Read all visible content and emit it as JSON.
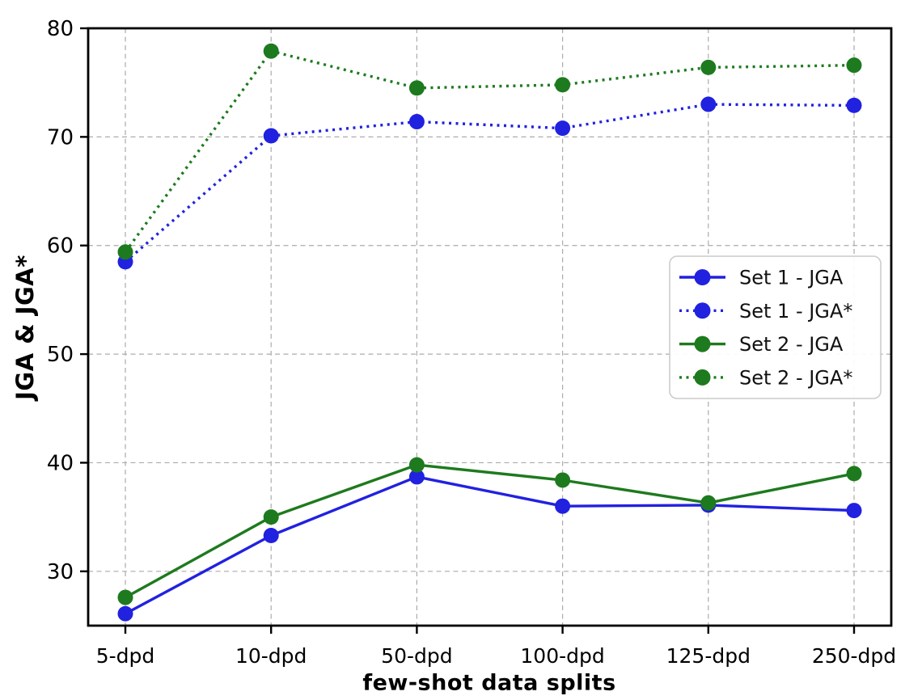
{
  "figure": {
    "background": "#ffffff",
    "text_color": "#000000"
  },
  "chart_data": {
    "type": "line",
    "title": "",
    "xlabel": "few-shot data splits",
    "ylabel": "JGA & JGA*",
    "categories": [
      "5-dpd",
      "10-dpd",
      "50-dpd",
      "100-dpd",
      "125-dpd",
      "250-dpd"
    ],
    "series": [
      {
        "name": "Set 1 - JGA",
        "color": "#2121e0",
        "line_style": "solid",
        "marker": "circle",
        "values": [
          26.1,
          33.3,
          38.7,
          36.0,
          36.1,
          35.6
        ]
      },
      {
        "name": "Set 1 - JGA*",
        "color": "#2121e0",
        "line_style": "dotted",
        "marker": "circle",
        "values": [
          58.5,
          70.1,
          71.4,
          70.8,
          73.0,
          72.9
        ]
      },
      {
        "name": "Set 2 - JGA",
        "color": "#1e7a1e",
        "line_style": "solid",
        "marker": "circle",
        "values": [
          27.6,
          35.0,
          39.8,
          38.4,
          36.3,
          39.0
        ]
      },
      {
        "name": "Set 2 - JGA*",
        "color": "#1e7a1e",
        "line_style": "dotted",
        "marker": "circle",
        "values": [
          59.4,
          77.9,
          74.5,
          74.8,
          76.4,
          76.6
        ]
      }
    ],
    "ylim": [
      25,
      80
    ],
    "yticks": [
      30,
      40,
      50,
      60,
      70,
      80
    ],
    "grid": true,
    "grid_color": "#ababab",
    "axis_color": "#000000",
    "legend": {
      "position": "center-right",
      "entries": [
        "Set 1 - JGA",
        "Set 1 - JGA*",
        "Set 2 - JGA",
        "Set 2 - JGA*"
      ],
      "border_color": "#cccccc",
      "background": "#ffffff"
    }
  }
}
